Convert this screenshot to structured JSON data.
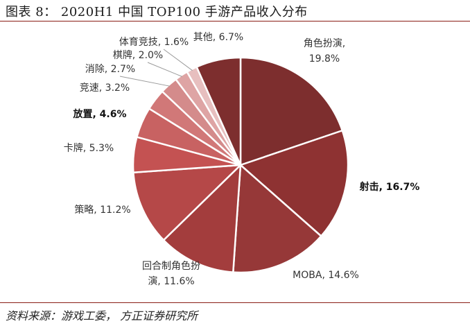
{
  "figure": {
    "title": "图表 8： 2020H1 中国 TOP100 手游产品收入分布",
    "source": "资料来源：游戏工委， 方正证券研究所"
  },
  "colors": {
    "rule": "#8a1c14",
    "slices": [
      "#7d2e2e",
      "#8e3232",
      "#963838",
      "#a33d3d",
      "#b54848",
      "#c45252",
      "#c86262",
      "#d17878",
      "#d48b8b",
      "#dea4a4",
      "#e7bfbf"
    ]
  },
  "chart_data": {
    "type": "pie",
    "title": "2020H1 中国 TOP100 手游产品收入分布",
    "unit": "%",
    "legend": "none",
    "categories": [
      "角色扮演",
      "射击",
      "MOBA",
      "回合制角色扮演",
      "策略",
      "卡牌",
      "放置",
      "竞速",
      "消除",
      "棋牌",
      "体育竞技",
      "其他"
    ],
    "values": [
      19.8,
      16.7,
      14.6,
      11.6,
      11.2,
      5.3,
      4.6,
      3.2,
      2.7,
      2.0,
      1.6,
      6.7
    ],
    "labels": [
      [
        "角色扮演,",
        "19.8%"
      ],
      [
        "射击, 16.7%"
      ],
      [
        "MOBA, 14.6%"
      ],
      [
        "回合制角色扮",
        "演, 11.6%"
      ],
      [
        "策略, 11.2%"
      ],
      [
        "卡牌, 5.3%"
      ],
      [
        "放置, 4.6%"
      ],
      [
        "竞速, 3.2%"
      ],
      [
        "消除, 2.7%"
      ],
      [
        "棋牌, 2.0%"
      ],
      [
        "体育竞技, 1.6%"
      ],
      [
        "其他, 6.7%"
      ]
    ],
    "bold_labels": [
      1,
      6
    ]
  }
}
